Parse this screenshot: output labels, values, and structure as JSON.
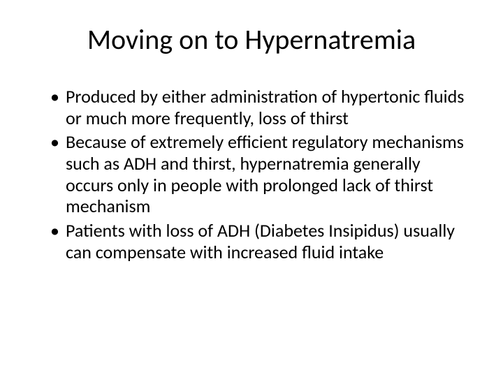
{
  "slide": {
    "background_color": "#ffffff",
    "text_color": "#000000",
    "font_family": "Calibri",
    "title": {
      "text": "Moving on to Hypernatremia",
      "fontsize": 40,
      "weight": 400,
      "align": "center"
    },
    "bullets": {
      "fontsize": 26,
      "line_height": 1.18,
      "marker": "•",
      "items": [
        "Produced by either administration of hypertonic fluids or much more frequently, loss of thirst",
        "Because of extremely efficient regulatory mechanisms such as ADH and thirst, hypernatremia generally occurs only in people with prolonged lack of thirst mechanism",
        "Patients with loss of ADH (Diabetes Insipidus) usually can compensate with increased fluid intake"
      ]
    }
  }
}
